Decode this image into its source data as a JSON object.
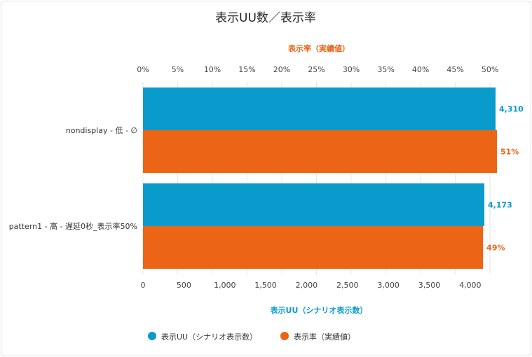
{
  "chart_data": {
    "type": "bar",
    "orientation": "horizontal",
    "title": "表示UU数／表示率",
    "categories": [
      "nondisplay - 低 - ∅",
      "pattern1 - 高 - 遅延0秒_表示率50%"
    ],
    "series": [
      {
        "name": "表示UU（シナリオ表示数）",
        "axis": "bottom",
        "color": "#0a9bcd",
        "values": [
          4310,
          4173
        ],
        "labels": [
          "4,310",
          "4,173"
        ]
      },
      {
        "name": "表示率（実績値）",
        "axis": "top",
        "color": "#ec6416",
        "values": [
          51,
          49
        ],
        "labels": [
          "51%",
          "49%"
        ]
      }
    ],
    "top_axis": {
      "title": "表示率（実績値）",
      "range": [
        0,
        50.8
      ],
      "ticks": [
        0,
        5,
        10,
        15,
        20,
        25,
        30,
        35,
        40,
        45,
        50
      ],
      "tick_labels": [
        "0%",
        "5%",
        "10%",
        "15%",
        "20%",
        "25%",
        "30%",
        "35%",
        "40%",
        "45%",
        "50%"
      ]
    },
    "bottom_axis": {
      "title": "表示UU（シナリオ表示数）",
      "range": [
        0,
        4310
      ],
      "ticks": [
        0,
        500,
        1000,
        1500,
        2000,
        2500,
        3000,
        3500,
        4000
      ],
      "tick_labels": [
        "0",
        "500",
        "1,000",
        "1,500",
        "2,000",
        "2,500",
        "3,000",
        "3,500",
        "4,000"
      ]
    },
    "grid": true,
    "legend_position": "bottom-left"
  }
}
